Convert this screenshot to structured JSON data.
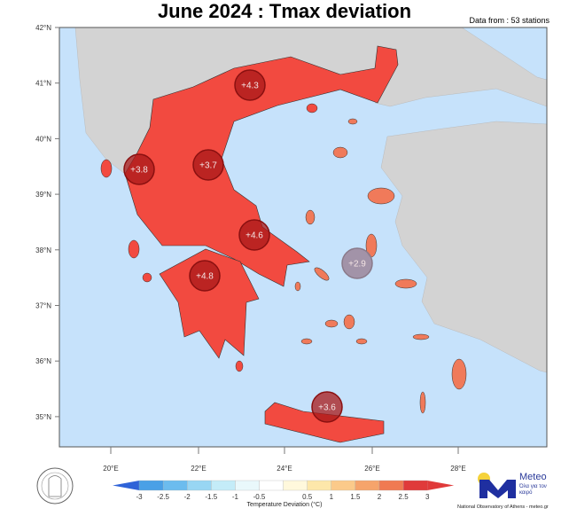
{
  "title": "June 2024 : Tmax deviation",
  "stations_note": "Data from : 53 stations",
  "axes": {
    "lon_ticks": [
      "20°E",
      "22°E",
      "24°E",
      "26°E",
      "28°E"
    ],
    "lat_ticks": [
      "42°N",
      "41°N",
      "40°N",
      "39°N",
      "38°N",
      "37°N",
      "36°N",
      "35°N"
    ]
  },
  "stations": [
    {
      "label": "+4.3",
      "value": 4.3,
      "region": "Macedonia/Thrace"
    },
    {
      "label": "+3.8",
      "value": 3.8,
      "region": "Epirus"
    },
    {
      "label": "+3.7",
      "value": 3.7,
      "region": "Thessaly"
    },
    {
      "label": "+4.6",
      "value": 4.6,
      "region": "Attica/Central Greece"
    },
    {
      "label": "+4.8",
      "value": 4.8,
      "region": "Peloponnese"
    },
    {
      "label": "+2.9",
      "value": 2.9,
      "region": "Aegean"
    },
    {
      "label": "+3.6",
      "value": 3.6,
      "region": "Crete"
    }
  ],
  "colorbar": {
    "title": "Temperature Deviation (°C)",
    "ticks": [
      "-3",
      "-2.5",
      "-2",
      "-1.5",
      "-1",
      "-0.5",
      "0.5",
      "1",
      "1.5",
      "2",
      "2.5",
      "3"
    ],
    "colors": [
      "#2f63d8",
      "#4aa0e6",
      "#6cbcee",
      "#98d6f3",
      "#c4ecf8",
      "#e9f8fb",
      "#ffffff",
      "#fff8dc",
      "#fde7aa",
      "#fbca8a",
      "#f6a46b",
      "#f07a52",
      "#e03a3a"
    ]
  },
  "colors": {
    "sea": "#c6e2fb",
    "land_neighbor": "#d3d3d3",
    "greece": "#f24a40",
    "islands": "#f07a5a",
    "marker": "#a81818",
    "marker_low": "#9d8b9e"
  },
  "logos": {
    "meteo_name": "Meteo",
    "meteo_tagline": "Όλα για τον καιρό",
    "institution": "National Observatory of Athens - meteo.gr"
  }
}
